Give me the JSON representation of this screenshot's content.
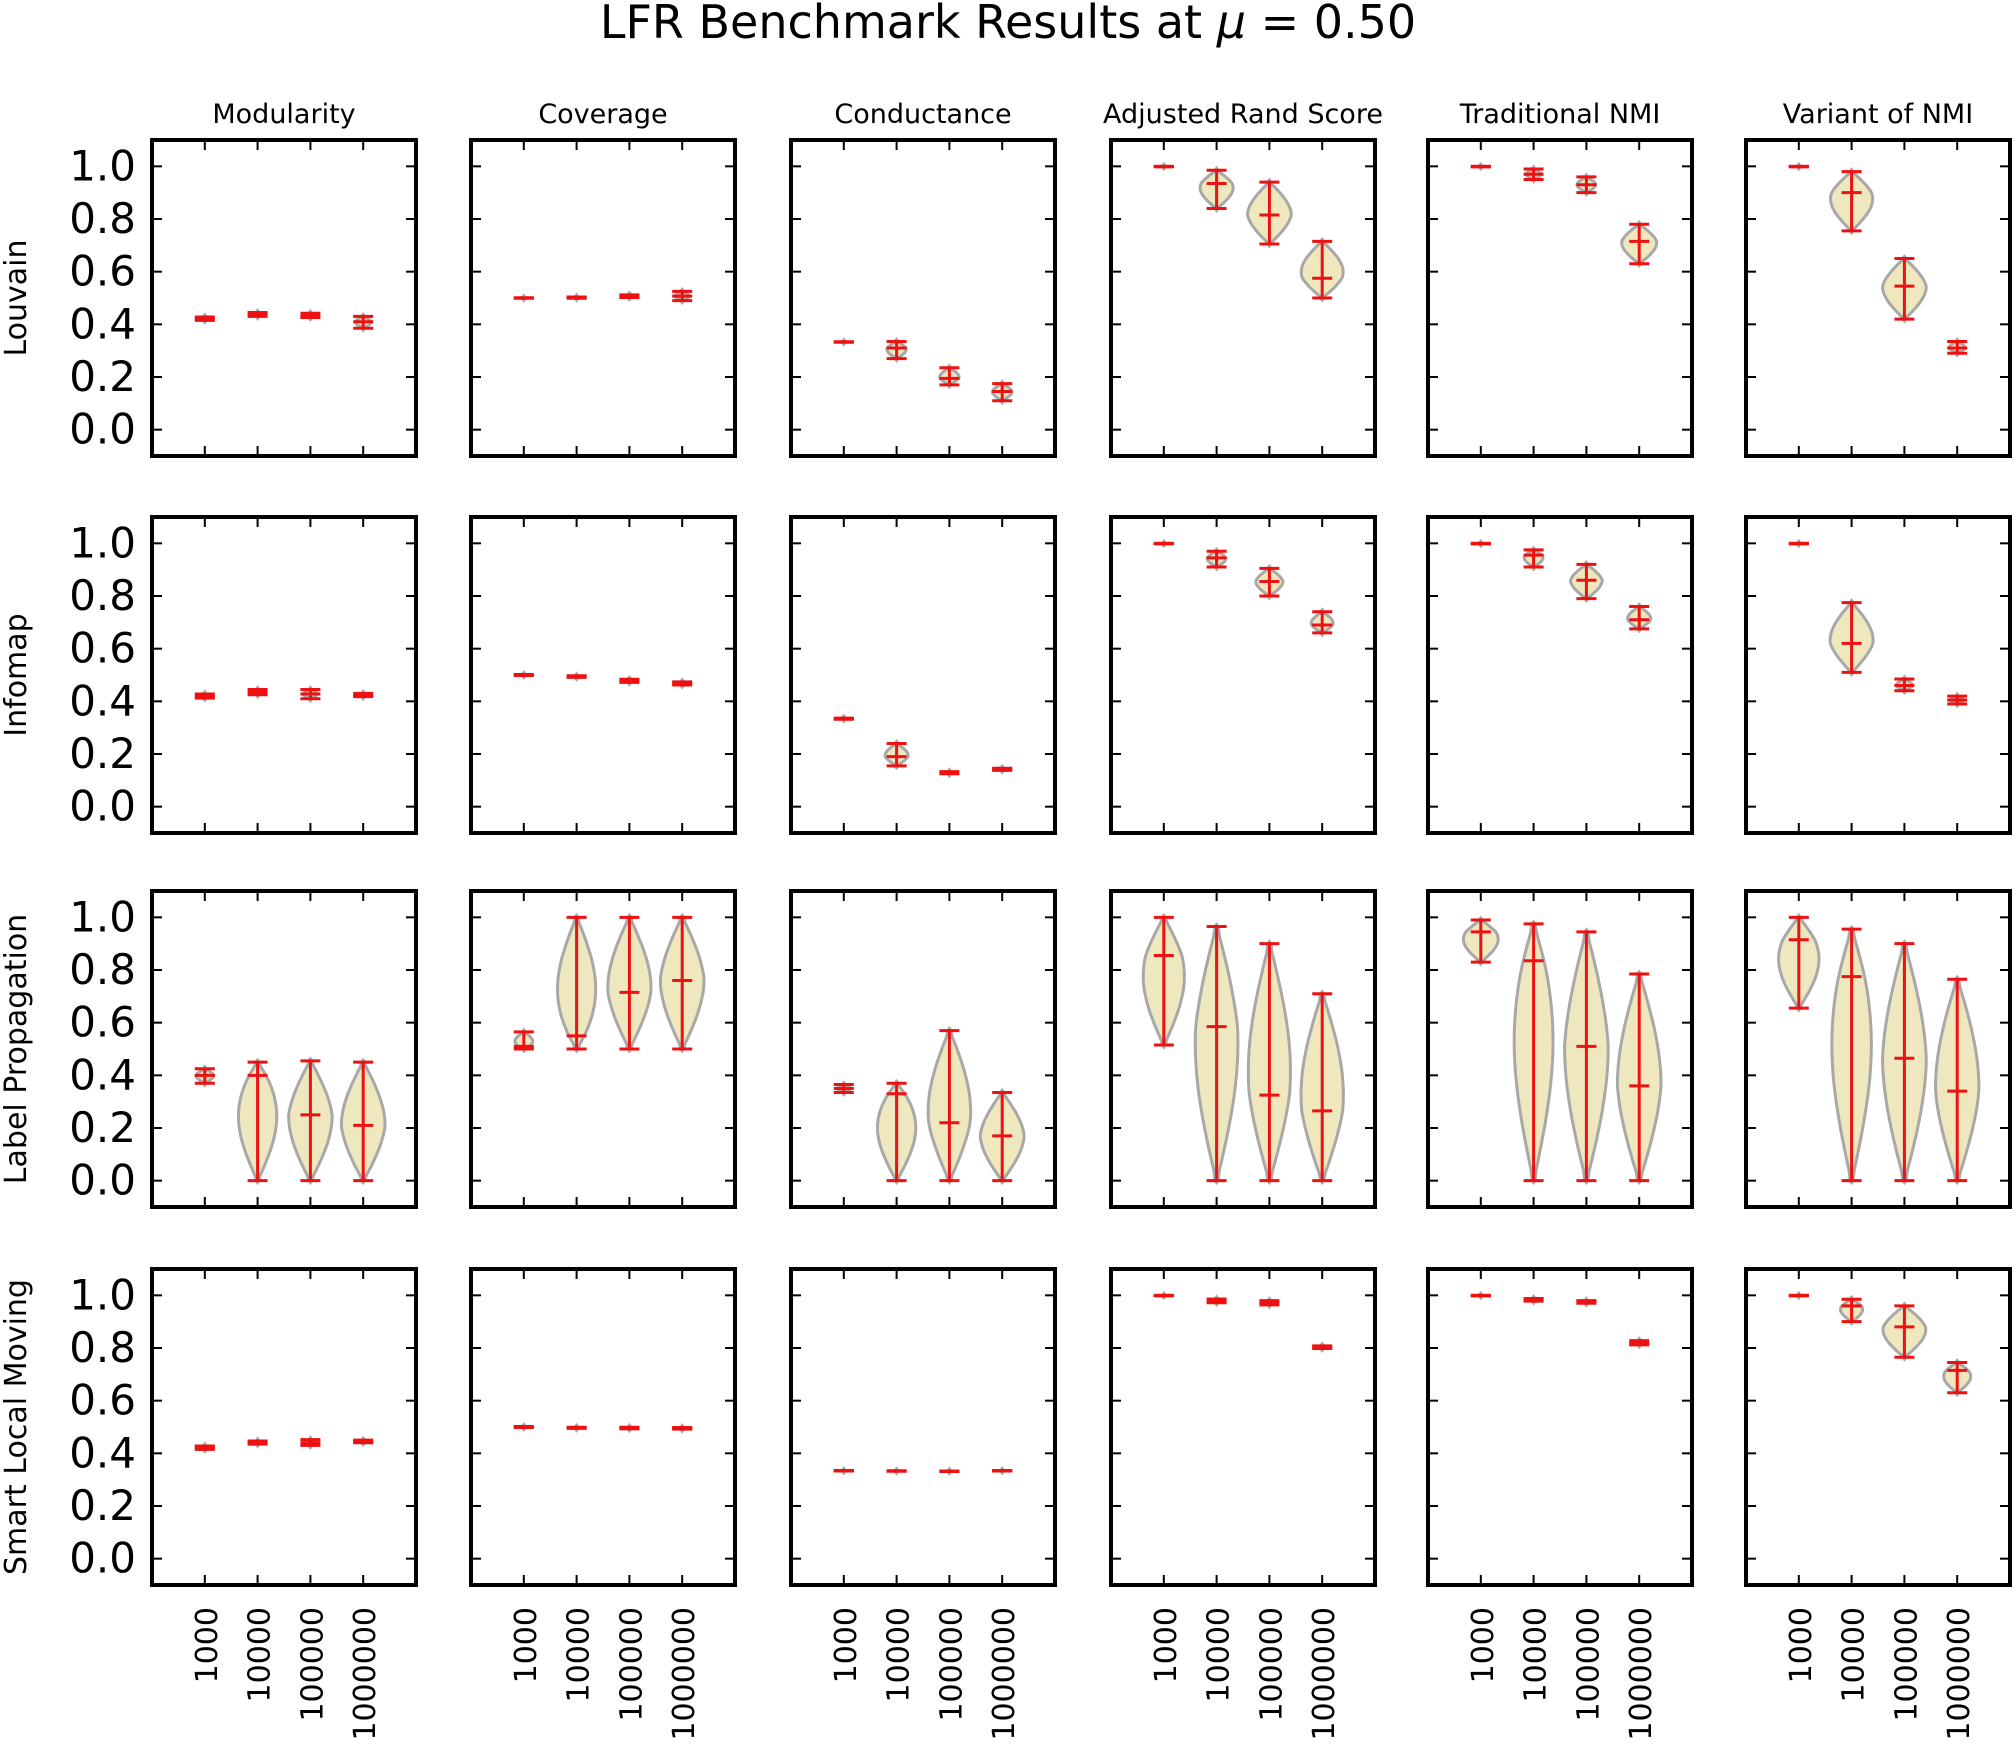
{
  "title": "LFR Benchmark Results at μ = 0.50",
  "title_parts": {
    "lead": "LFR Benchmark Results at ",
    "mu": "μ",
    "tail": " = 0.50"
  },
  "colors": {
    "violin_fill": "#efe8bf",
    "violin_edge": "#a8a8a8",
    "marker": "#ee1111",
    "axis": "#000000"
  },
  "chart_data": {
    "type": "violin",
    "grid": false,
    "ylim": [
      -0.1,
      1.1
    ],
    "yticks": [
      "0.0",
      "0.2",
      "0.4",
      "0.6",
      "0.8",
      "1.0"
    ],
    "categories": [
      "1000",
      "10000",
      "100000",
      "1000000"
    ],
    "columns": [
      "Modularity",
      "Coverage",
      "Conductance",
      "Adjusted Rand Score",
      "Traditional NMI",
      "Variant of NMI"
    ],
    "rows": [
      "Louvain",
      "Infomap",
      "Label Propagation",
      "Smart Local Moving"
    ],
    "panels": [
      [
        [
          {
            "min": 0.415,
            "mean": 0.422,
            "max": 0.428
          },
          {
            "min": 0.43,
            "mean": 0.438,
            "max": 0.445
          },
          {
            "min": 0.426,
            "mean": 0.434,
            "max": 0.442
          },
          {
            "min": 0.385,
            "mean": 0.41,
            "max": 0.43
          }
        ],
        [
          {
            "min": 0.499,
            "mean": 0.5,
            "max": 0.501
          },
          {
            "min": 0.499,
            "mean": 0.501,
            "max": 0.504
          },
          {
            "min": 0.502,
            "mean": 0.507,
            "max": 0.512
          },
          {
            "min": 0.49,
            "mean": 0.507,
            "max": 0.525
          }
        ],
        [
          {
            "min": 0.332,
            "mean": 0.333,
            "max": 0.334
          },
          {
            "min": 0.27,
            "mean": 0.31,
            "max": 0.335
          },
          {
            "min": 0.17,
            "mean": 0.195,
            "max": 0.235
          },
          {
            "min": 0.11,
            "mean": 0.145,
            "max": 0.175
          }
        ],
        [
          {
            "min": 0.998,
            "mean": 1.0,
            "max": 1.0
          },
          {
            "min": 0.84,
            "mean": 0.935,
            "max": 0.985
          },
          {
            "min": 0.705,
            "mean": 0.815,
            "max": 0.94
          },
          {
            "min": 0.5,
            "mean": 0.575,
            "max": 0.715
          }
        ],
        [
          {
            "min": 0.998,
            "mean": 1.0,
            "max": 1.0
          },
          {
            "min": 0.95,
            "mean": 0.97,
            "max": 0.99
          },
          {
            "min": 0.9,
            "mean": 0.93,
            "max": 0.96
          },
          {
            "min": 0.63,
            "mean": 0.715,
            "max": 0.78
          }
        ],
        [
          {
            "min": 0.998,
            "mean": 1.0,
            "max": 1.0
          },
          {
            "min": 0.755,
            "mean": 0.9,
            "max": 0.98
          },
          {
            "min": 0.42,
            "mean": 0.545,
            "max": 0.65
          },
          {
            "min": 0.29,
            "mean": 0.31,
            "max": 0.335
          }
        ]
      ],
      [
        [
          {
            "min": 0.412,
            "mean": 0.42,
            "max": 0.428
          },
          {
            "min": 0.425,
            "mean": 0.435,
            "max": 0.445
          },
          {
            "min": 0.41,
            "mean": 0.428,
            "max": 0.445
          },
          {
            "min": 0.418,
            "mean": 0.424,
            "max": 0.43
          }
        ],
        [
          {
            "min": 0.498,
            "mean": 0.5,
            "max": 0.502
          },
          {
            "min": 0.491,
            "mean": 0.494,
            "max": 0.497
          },
          {
            "min": 0.472,
            "mean": 0.478,
            "max": 0.484
          },
          {
            "min": 0.462,
            "mean": 0.468,
            "max": 0.474
          }
        ],
        [
          {
            "min": 0.332,
            "mean": 0.334,
            "max": 0.336
          },
          {
            "min": 0.155,
            "mean": 0.19,
            "max": 0.24
          },
          {
            "min": 0.125,
            "mean": 0.129,
            "max": 0.133
          },
          {
            "min": 0.138,
            "mean": 0.142,
            "max": 0.146
          }
        ],
        [
          {
            "min": 0.998,
            "mean": 1.0,
            "max": 1.0
          },
          {
            "min": 0.91,
            "mean": 0.945,
            "max": 0.97
          },
          {
            "min": 0.8,
            "mean": 0.855,
            "max": 0.905
          },
          {
            "min": 0.66,
            "mean": 0.69,
            "max": 0.74
          }
        ],
        [
          {
            "min": 0.998,
            "mean": 1.0,
            "max": 1.0
          },
          {
            "min": 0.91,
            "mean": 0.955,
            "max": 0.975
          },
          {
            "min": 0.79,
            "mean": 0.86,
            "max": 0.92
          },
          {
            "min": 0.675,
            "mean": 0.71,
            "max": 0.76
          }
        ],
        [
          {
            "min": 0.998,
            "mean": 1.0,
            "max": 1.0
          },
          {
            "min": 0.51,
            "mean": 0.62,
            "max": 0.775
          },
          {
            "min": 0.44,
            "mean": 0.46,
            "max": 0.485
          },
          {
            "min": 0.39,
            "mean": 0.405,
            "max": 0.42
          }
        ]
      ],
      [
        [
          {
            "min": 0.37,
            "mean": 0.4,
            "max": 0.425
          },
          {
            "min": 0.0,
            "mean": 0.4,
            "max": 0.45
          },
          {
            "min": 0.0,
            "mean": 0.25,
            "max": 0.455
          },
          {
            "min": 0.0,
            "mean": 0.21,
            "max": 0.45
          }
        ],
        [
          {
            "min": 0.5,
            "mean": 0.51,
            "max": 0.565
          },
          {
            "min": 0.5,
            "mean": 0.55,
            "max": 1.0
          },
          {
            "min": 0.5,
            "mean": 0.715,
            "max": 1.0
          },
          {
            "min": 0.5,
            "mean": 0.76,
            "max": 1.0
          }
        ],
        [
          {
            "min": 0.335,
            "mean": 0.35,
            "max": 0.365
          },
          {
            "min": 0.0,
            "mean": 0.33,
            "max": 0.37
          },
          {
            "min": 0.0,
            "mean": 0.22,
            "max": 0.57
          },
          {
            "min": 0.0,
            "mean": 0.17,
            "max": 0.335
          }
        ],
        [
          {
            "min": 0.515,
            "mean": 0.855,
            "max": 1.0
          },
          {
            "min": 0.0,
            "mean": 0.585,
            "max": 0.965
          },
          {
            "min": 0.0,
            "mean": 0.325,
            "max": 0.9
          },
          {
            "min": 0.0,
            "mean": 0.265,
            "max": 0.71
          }
        ],
        [
          {
            "min": 0.83,
            "mean": 0.945,
            "max": 0.99
          },
          {
            "min": 0.0,
            "mean": 0.835,
            "max": 0.975
          },
          {
            "min": 0.0,
            "mean": 0.51,
            "max": 0.945
          },
          {
            "min": 0.0,
            "mean": 0.36,
            "max": 0.785
          }
        ],
        [
          {
            "min": 0.655,
            "mean": 0.915,
            "max": 1.0
          },
          {
            "min": 0.0,
            "mean": 0.775,
            "max": 0.955
          },
          {
            "min": 0.0,
            "mean": 0.465,
            "max": 0.9
          },
          {
            "min": 0.0,
            "mean": 0.34,
            "max": 0.765
          }
        ]
      ],
      [
        [
          {
            "min": 0.415,
            "mean": 0.422,
            "max": 0.428
          },
          {
            "min": 0.435,
            "mean": 0.441,
            "max": 0.447
          },
          {
            "min": 0.43,
            "mean": 0.44,
            "max": 0.452
          },
          {
            "min": 0.44,
            "mean": 0.445,
            "max": 0.45
          }
        ],
        [
          {
            "min": 0.498,
            "mean": 0.5,
            "max": 0.502
          },
          {
            "min": 0.495,
            "mean": 0.497,
            "max": 0.499
          },
          {
            "min": 0.493,
            "mean": 0.496,
            "max": 0.499
          },
          {
            "min": 0.492,
            "mean": 0.495,
            "max": 0.498
          }
        ],
        [
          {
            "min": 0.333,
            "mean": 0.334,
            "max": 0.335
          },
          {
            "min": 0.332,
            "mean": 0.333,
            "max": 0.334
          },
          {
            "min": 0.331,
            "mean": 0.332,
            "max": 0.333
          },
          {
            "min": 0.333,
            "mean": 0.334,
            "max": 0.335
          }
        ],
        [
          {
            "min": 0.998,
            "mean": 1.0,
            "max": 1.0
          },
          {
            "min": 0.972,
            "mean": 0.98,
            "max": 0.986
          },
          {
            "min": 0.964,
            "mean": 0.973,
            "max": 0.98
          },
          {
            "min": 0.798,
            "mean": 0.803,
            "max": 0.808
          }
        ],
        [
          {
            "min": 0.998,
            "mean": 1.0,
            "max": 1.0
          },
          {
            "min": 0.978,
            "mean": 0.983,
            "max": 0.988
          },
          {
            "min": 0.97,
            "mean": 0.975,
            "max": 0.98
          },
          {
            "min": 0.812,
            "mean": 0.82,
            "max": 0.828
          }
        ],
        [
          {
            "min": 0.998,
            "mean": 1.0,
            "max": 1.0
          },
          {
            "min": 0.9,
            "mean": 0.96,
            "max": 0.985
          },
          {
            "min": 0.765,
            "mean": 0.88,
            "max": 0.96
          },
          {
            "min": 0.63,
            "mean": 0.715,
            "max": 0.745
          }
        ]
      ]
    ]
  }
}
